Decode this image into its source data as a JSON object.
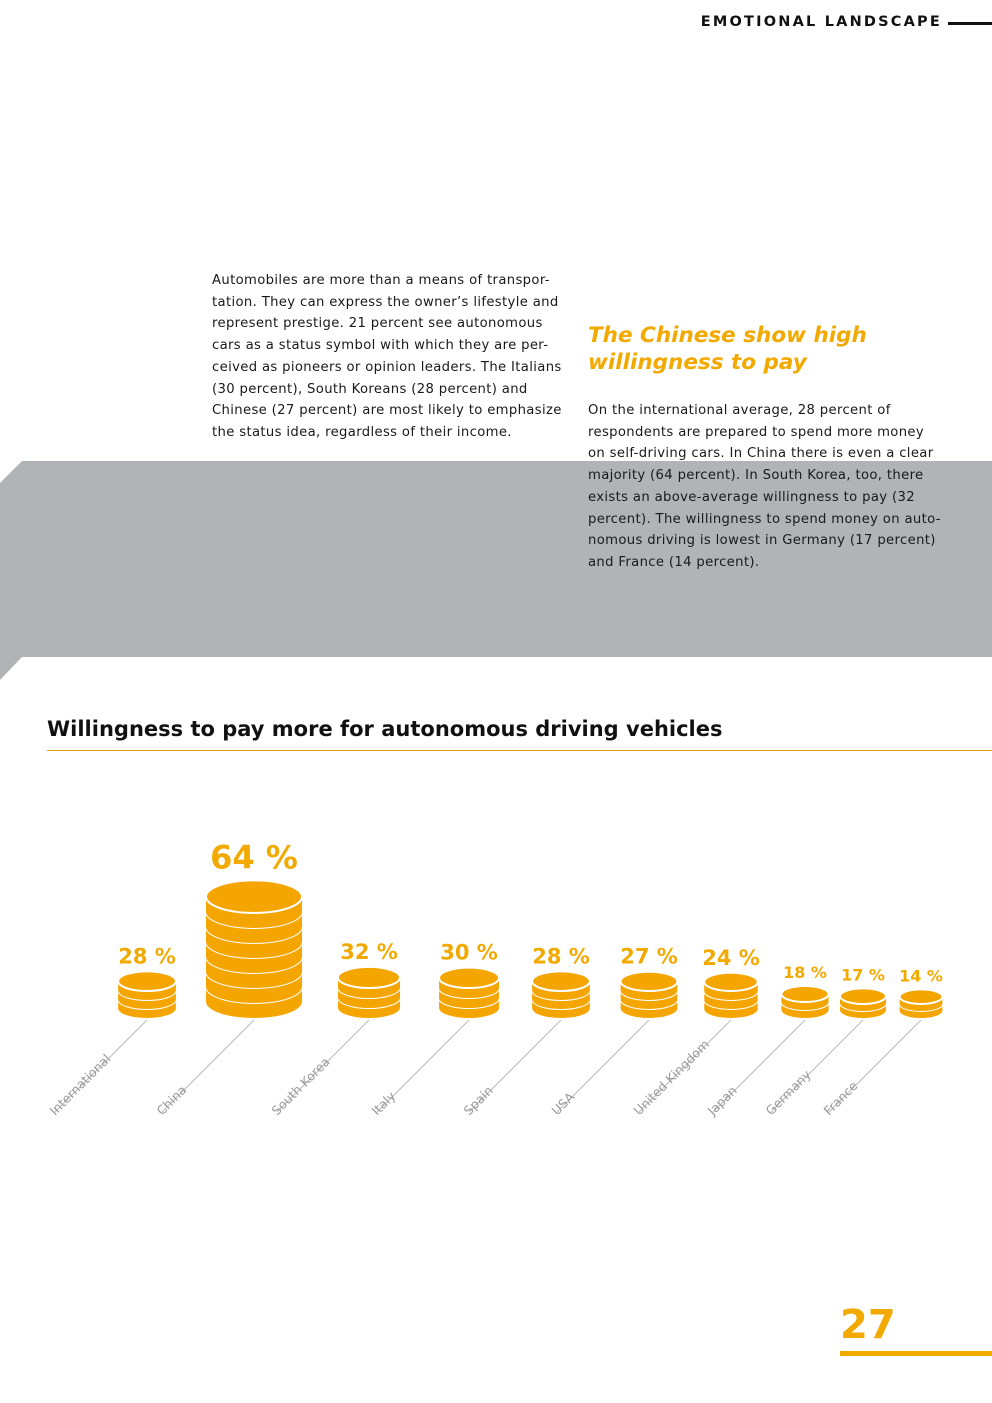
{
  "header": {
    "section_title": "EMOTIONAL LANDSCAPE"
  },
  "intro": {
    "text": "Automobiles are more than a means of transpor-\ntation. They can express the owner’s lifestyle and\nrepresent prestige. 21 percent see autonomous\ncars as a status symbol with which they are per-\nceived as pioneers or opinion leaders. The Italians\n(30 percent), South Koreans (28 percent) and\nChinese (27 percent) are most likely to emphasize\nthe status idea, regardless of their income."
  },
  "side": {
    "heading": "The Chinese show high\nwillingness to pay",
    "text": "On the international average, 28 percent of\nrespondents are prepared to spend more money\non self-driving cars. In China there is even a clear\nmajority (64 percent). In South Korea, too, there\nexists an above-average willingness to pay (32\npercent). The willingness to spend money on auto-\nnomous driving is lowest in Germany (17 percent)\nand France (14 percent)."
  },
  "chart_data": {
    "type": "bar",
    "title": "Willingness to pay more for autonomous driving vehicles",
    "categories": [
      "International",
      "China",
      "South Korea",
      "Italy",
      "Spain",
      "USA",
      "United Kingdom",
      "Japan",
      "Germany",
      "France"
    ],
    "values": [
      28,
      64,
      32,
      30,
      28,
      27,
      24,
      18,
      17,
      14
    ],
    "value_labels": [
      "28 %",
      "64 %",
      "32 %",
      "30 %",
      "28 %",
      "27 %",
      "24 %",
      "18 %",
      "17 %",
      "14 %"
    ],
    "unit": "%",
    "xlabel": "",
    "ylabel": "",
    "ylim": [
      0,
      64
    ],
    "mark_style": "coin stacks",
    "colors": {
      "coin": "#f5a500",
      "coin_edge": "#ffffff",
      "label": "#f2a900",
      "category_label": "#999999",
      "leader_line": "#bbbbbb"
    }
  },
  "colors": {
    "accent": "#f2a900",
    "band": "#b1b4b6",
    "text": "#1a1a1a"
  },
  "footer": {
    "page_number": "27"
  }
}
